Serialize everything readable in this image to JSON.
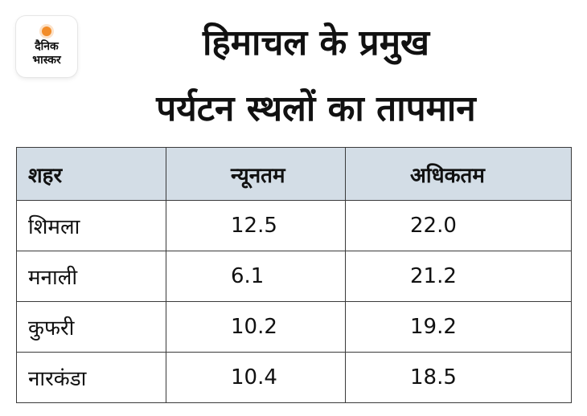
{
  "logo": {
    "line1": "दैनिक",
    "line2": "भास्कर"
  },
  "title": {
    "line1": "हिमाचल के प्रमुख",
    "line2": "पर्यटन स्थलों का तापमान"
  },
  "table": {
    "headers": [
      "शहर",
      "न्यूनतम",
      "अधिकतम"
    ],
    "rows": [
      {
        "city": "शिमला",
        "min": "12.5",
        "max": "22.0"
      },
      {
        "city": "मनाली",
        "min": "6.1",
        "max": "21.2"
      },
      {
        "city": "कुफरी",
        "min": "10.2",
        "max": "19.2"
      },
      {
        "city": "नारकंडा",
        "min": "10.4",
        "max": "18.5"
      }
    ]
  },
  "colors": {
    "header_bg": "#d3dde6",
    "logo_accent": "#f28c28",
    "border": "#3a3a3a"
  }
}
